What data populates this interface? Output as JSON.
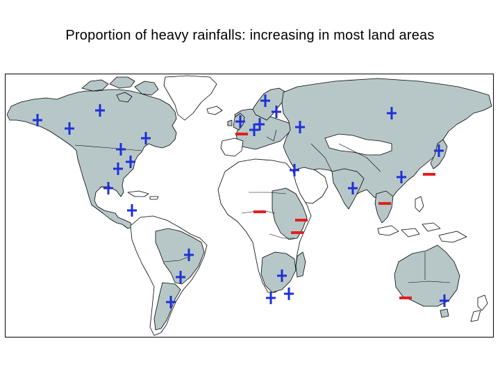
{
  "title": "Proportion of heavy rainfalls: increasing in most land areas",
  "colors": {
    "land_highlight": "#b7c7c7",
    "land_plain": "#ffffff",
    "border": "#000000",
    "increase_marker": "#1f2fd6",
    "decrease_marker": "#e02020"
  },
  "legend_symbols": {
    "increase": "+",
    "decrease": "−"
  },
  "markers": [
    {
      "type": "increase",
      "region": "alaska-west"
    },
    {
      "type": "increase",
      "region": "alaska-south"
    },
    {
      "type": "increase",
      "region": "canada-north"
    },
    {
      "type": "increase",
      "region": "canada-east"
    },
    {
      "type": "increase",
      "region": "usa-central"
    },
    {
      "type": "increase",
      "region": "usa-southwest"
    },
    {
      "type": "increase",
      "region": "usa-southeast"
    },
    {
      "type": "increase",
      "region": "mexico"
    },
    {
      "type": "increase",
      "region": "central-america"
    },
    {
      "type": "increase",
      "region": "brazil-east"
    },
    {
      "type": "increase",
      "region": "brazil-south"
    },
    {
      "type": "increase",
      "region": "argentina"
    },
    {
      "type": "increase",
      "region": "scandinavia"
    },
    {
      "type": "increase",
      "region": "finland"
    },
    {
      "type": "increase",
      "region": "british-isles"
    },
    {
      "type": "decrease",
      "region": "western-europe"
    },
    {
      "type": "increase",
      "region": "central-europe"
    },
    {
      "type": "increase",
      "region": "eastern-europe"
    },
    {
      "type": "increase",
      "region": "western-russia"
    },
    {
      "type": "increase",
      "region": "siberia"
    },
    {
      "type": "increase",
      "region": "middle-east"
    },
    {
      "type": "increase",
      "region": "india"
    },
    {
      "type": "increase",
      "region": "china-east"
    },
    {
      "type": "increase",
      "region": "japan"
    },
    {
      "type": "decrease",
      "region": "korea"
    },
    {
      "type": "decrease",
      "region": "southeast-asia"
    },
    {
      "type": "decrease",
      "region": "west-africa"
    },
    {
      "type": "decrease",
      "region": "east-africa-north"
    },
    {
      "type": "decrease",
      "region": "east-africa-south"
    },
    {
      "type": "increase",
      "region": "southern-africa-north"
    },
    {
      "type": "increase",
      "region": "southern-africa-west"
    },
    {
      "type": "increase",
      "region": "southern-africa-east"
    },
    {
      "type": "decrease",
      "region": "australia-southwest"
    },
    {
      "type": "increase",
      "region": "australia-east"
    }
  ]
}
